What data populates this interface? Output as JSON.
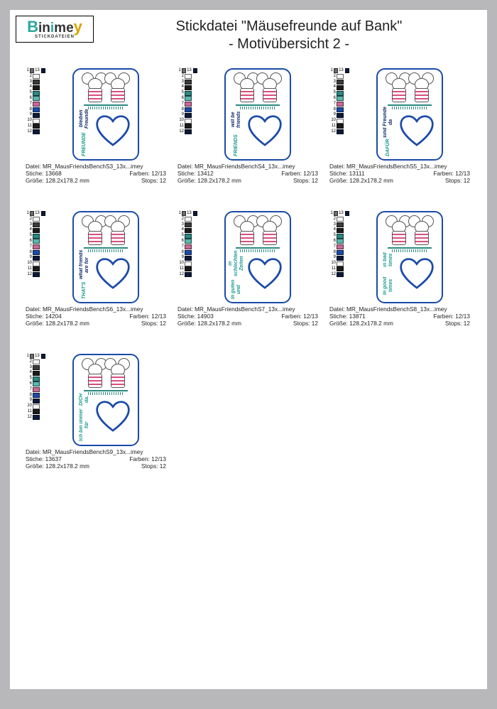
{
  "logo": {
    "brand": "Binimey",
    "sub": "STICKDATEIEN"
  },
  "title": {
    "line1": "Stickdatei \"Mäusefreunde auf Bank\"",
    "line2": "- Motivübersicht 2 -"
  },
  "labels": {
    "file": "Datei:",
    "stitches": "Stiche:",
    "size": "Größe:",
    "colors": "Farben:",
    "stops": "Stops:"
  },
  "palette12": {
    "extra": 13,
    "colors": [
      "#6c6c6c",
      "#f5f5f5",
      "#3a3a3a",
      "#1b1b1b",
      "#2a8a82",
      "#58b7b0",
      "#c86a95",
      "#1a4aa8",
      "#0b1a3a",
      "#f5f5f5",
      "#1b1b1b",
      "#0b1a3a"
    ],
    "extra_color": "#0b1a3a"
  },
  "palette13": {
    "extra": 13,
    "colors": [
      "#6c6c6c",
      "#f5f5f5",
      "#3a3a3a",
      "#1b1b1b",
      "#2a8a82",
      "#58b7b0",
      "#c86a95",
      "#1a4aa8",
      "#0b1a3a",
      "#f5f5f5",
      "#1b1b1b",
      "#0b1a3a"
    ],
    "extra_color": "#0b1a3a"
  },
  "text_colors": {
    "teal": "#199a92",
    "navy": "#102a6b"
  },
  "heart_stroke": "#1a4aa8",
  "items": [
    {
      "file": "MR_MausFriendsBenchS3_13x...imey",
      "stitches": "13668",
      "colors": "12/13",
      "size": "128.2x178.2 mm",
      "stops": "12",
      "palette": "palette12",
      "text_lines": [
        "FREUNDE",
        "bleiben Freunde"
      ],
      "line_colors": [
        "teal",
        "navy"
      ]
    },
    {
      "file": "MR_MausFriendsBenchS4_13x...imey",
      "stitches": "13412",
      "colors": "12/13",
      "size": "128.2x178.2 mm",
      "stops": "12",
      "palette": "palette12",
      "text_lines": [
        "FRIENDS",
        "will be friends"
      ],
      "line_colors": [
        "teal",
        "navy"
      ]
    },
    {
      "file": "MR_MausFriendsBenchS5_13x...imey",
      "stitches": "13111",
      "colors": "12/13",
      "size": "128.2x178.2 mm",
      "stops": "12",
      "palette": "palette12",
      "text_lines": [
        "DAFÜR",
        "sind Freunde da"
      ],
      "line_colors": [
        "teal",
        "navy"
      ]
    },
    {
      "file": "MR_MausFriendsBenchS6_13x...imey",
      "stitches": "14204",
      "colors": "12/13",
      "size": "128.2x178.2 mm",
      "stops": "12",
      "palette": "palette13",
      "text_lines": [
        "THAT'S",
        "what friends are for"
      ],
      "line_colors": [
        "teal",
        "navy"
      ]
    },
    {
      "file": "MR_MausFriendsBenchS7_13x...imey",
      "stitches": "14903",
      "colors": "12/13",
      "size": "128.2x178.2 mm",
      "stops": "12",
      "palette": "palette13",
      "text_lines": [
        "In guten und",
        "in schlechten Zeiten"
      ],
      "line_colors": [
        "teal",
        "teal"
      ]
    },
    {
      "file": "MR_MausFriendsBenchS8_13x...imey",
      "stitches": "13871",
      "colors": "12/13",
      "size": "128.2x178.2 mm",
      "stops": "12",
      "palette": "palette13",
      "text_lines": [
        "In good times",
        "in bad times"
      ],
      "line_colors": [
        "teal",
        "teal"
      ]
    },
    {
      "file": "MR_MausFriendsBenchS9_13x...imey",
      "stitches": "13637",
      "colors": "12/13",
      "size": "128.2x178.2 mm",
      "stops": "12",
      "palette": "palette13",
      "text_lines": [
        "Ich bin immer für",
        "DICH da."
      ],
      "line_colors": [
        "teal",
        "teal"
      ]
    }
  ]
}
